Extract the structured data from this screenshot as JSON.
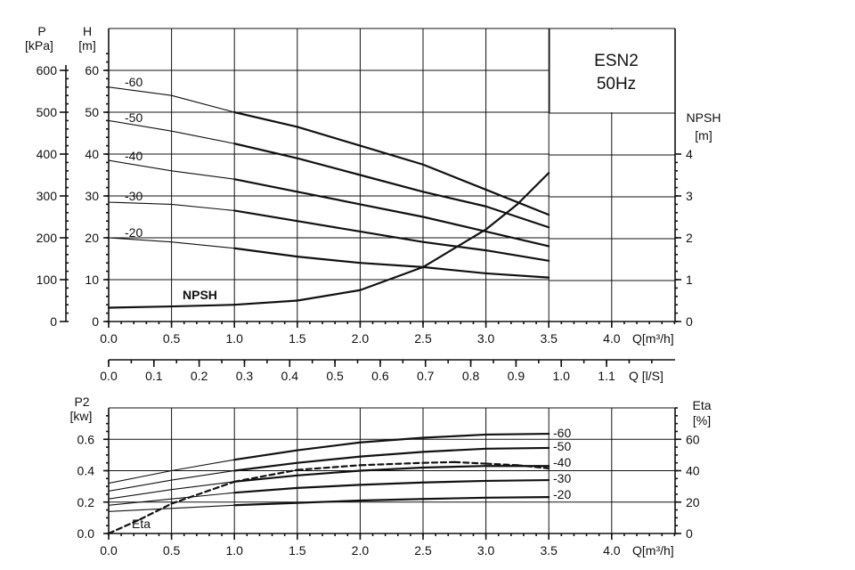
{
  "chart_data": [
    {
      "type": "line",
      "panel": "head-npsh",
      "title": "ESN2",
      "subtitle": "50Hz",
      "x_axis": {
        "label": "Q[m³/h]",
        "ticks": [
          "0.0",
          "0.5",
          "1.0",
          "1.5",
          "2.0",
          "2.5",
          "3.0",
          "3.5",
          "4.0"
        ],
        "range": [
          0,
          4.5
        ]
      },
      "y_axes": {
        "head": {
          "label_top": "H",
          "label_unit": "[m]",
          "ticks": [
            "0",
            "10",
            "20",
            "30",
            "40",
            "50",
            "60"
          ],
          "range": [
            0,
            60
          ]
        },
        "pressure": {
          "label_top": "P",
          "label_unit": "[kPa]",
          "ticks": [
            "0",
            "100",
            "200",
            "300",
            "400",
            "500",
            "600"
          ],
          "range": [
            0,
            600
          ]
        },
        "npsh": {
          "label_top": "NPSH",
          "label_unit": "[m]",
          "ticks": [
            "0",
            "1",
            "2",
            "3",
            "4"
          ],
          "range": [
            0,
            4
          ]
        }
      },
      "grid": true,
      "series": [
        {
          "name": "-60",
          "axis": "head",
          "x": [
            0,
            0.5,
            1.0,
            1.5,
            2.0,
            2.5,
            3.0,
            3.5
          ],
          "y": [
            56,
            54,
            50,
            46.5,
            42,
            37.5,
            31.5,
            25.5
          ],
          "weight": [
            1,
            1,
            2,
            2,
            2,
            2,
            2
          ]
        },
        {
          "name": "-50",
          "axis": "head",
          "x": [
            0,
            0.5,
            1.0,
            1.5,
            2.0,
            2.5,
            3.0,
            3.5
          ],
          "y": [
            48,
            45.5,
            42.5,
            39,
            35,
            31,
            27.5,
            22.5
          ],
          "weight": [
            1,
            1,
            2,
            2,
            2,
            2,
            2
          ]
        },
        {
          "name": "-40",
          "axis": "head",
          "x": [
            0,
            0.5,
            1.0,
            1.5,
            2.0,
            2.5,
            3.0,
            3.5
          ],
          "y": [
            38.5,
            36,
            34,
            31,
            28,
            25,
            21.5,
            18
          ],
          "weight": [
            1,
            1,
            2,
            2,
            2,
            2,
            2
          ]
        },
        {
          "name": "-30",
          "axis": "head",
          "x": [
            0,
            0.5,
            1.0,
            1.5,
            2.0,
            2.5,
            3.0,
            3.5
          ],
          "y": [
            28.5,
            28,
            26.5,
            24,
            21.5,
            19,
            17,
            14.5
          ],
          "weight": [
            1,
            1,
            2,
            2,
            2,
            2,
            2
          ]
        },
        {
          "name": "-20",
          "axis": "head",
          "x": [
            0,
            0.5,
            1.0,
            1.5,
            2.0,
            2.5,
            3.0,
            3.5
          ],
          "y": [
            20,
            19,
            17.5,
            15.5,
            14,
            13,
            11.5,
            10.5
          ],
          "weight": [
            1,
            1,
            2,
            2,
            2,
            2,
            2
          ]
        },
        {
          "name": "NPSH",
          "axis": "npsh",
          "x": [
            0,
            0.5,
            1.0,
            1.5,
            2.0,
            2.5,
            3.0,
            3.25,
            3.5
          ],
          "y": [
            0.33,
            0.36,
            0.4,
            0.5,
            0.75,
            1.3,
            2.2,
            2.8,
            3.55
          ],
          "weight": [
            2,
            2,
            2,
            2,
            2,
            2,
            2,
            2
          ]
        }
      ]
    },
    {
      "type": "axis",
      "panel": "flow-conversion",
      "x_axis": {
        "label": "Q [l/S]",
        "ticks": [
          "0.0",
          "0.1",
          "0.2",
          "0.3",
          "0.4",
          "0.5",
          "0.6",
          "0.7",
          "0.8",
          "0.9",
          "1.0",
          "1.1"
        ],
        "range": [
          0,
          1.25
        ]
      }
    },
    {
      "type": "line",
      "panel": "power-efficiency",
      "x_axis": {
        "label": "Q[m³/h]",
        "ticks": [
          "0.0",
          "0.5",
          "1.0",
          "1.5",
          "2.0",
          "2.5",
          "3.0",
          "3.5",
          "4.0"
        ],
        "range": [
          0,
          4.5
        ]
      },
      "y_axes": {
        "power": {
          "label_top": "P2",
          "label_unit": "[kw]",
          "ticks": [
            "0.0",
            "0.2",
            "0.4",
            "0.6"
          ],
          "range": [
            0,
            0.8
          ]
        },
        "eta": {
          "label_top": "Eta",
          "label_unit": "[%]",
          "ticks": [
            "0",
            "20",
            "40",
            "60"
          ],
          "range": [
            0,
            80
          ]
        }
      },
      "grid": true,
      "series": [
        {
          "name": "-60",
          "axis": "power",
          "x": [
            0,
            0.5,
            1.0,
            1.5,
            2.0,
            2.5,
            3.0,
            3.5
          ],
          "y": [
            0.32,
            0.4,
            0.47,
            0.53,
            0.58,
            0.61,
            0.63,
            0.635
          ],
          "weight": [
            1,
            1,
            2,
            2,
            2,
            2,
            2
          ]
        },
        {
          "name": "-50",
          "axis": "power",
          "x": [
            0,
            0.5,
            1.0,
            1.5,
            2.0,
            2.5,
            3.0,
            3.5
          ],
          "y": [
            0.27,
            0.34,
            0.4,
            0.45,
            0.49,
            0.52,
            0.54,
            0.545
          ],
          "weight": [
            1,
            1,
            2,
            2,
            2,
            2,
            2
          ]
        },
        {
          "name": "-40",
          "axis": "power",
          "x": [
            0,
            0.5,
            1.0,
            1.5,
            2.0,
            2.5,
            3.0,
            3.5
          ],
          "y": [
            0.22,
            0.28,
            0.33,
            0.37,
            0.4,
            0.42,
            0.43,
            0.43
          ],
          "weight": [
            1,
            1,
            2,
            2,
            2,
            2,
            2
          ]
        },
        {
          "name": "-30",
          "axis": "power",
          "x": [
            0,
            0.5,
            1.0,
            1.5,
            2.0,
            2.5,
            3.0,
            3.5
          ],
          "y": [
            0.18,
            0.22,
            0.26,
            0.29,
            0.31,
            0.325,
            0.335,
            0.34
          ],
          "weight": [
            1,
            1,
            2,
            2,
            2,
            2,
            2
          ]
        },
        {
          "name": "-20",
          "axis": "power",
          "x": [
            0,
            0.5,
            1.0,
            1.5,
            2.0,
            2.5,
            3.0,
            3.5
          ],
          "y": [
            0.14,
            0.16,
            0.18,
            0.195,
            0.21,
            0.22,
            0.228,
            0.232
          ],
          "weight": [
            1,
            1,
            2,
            2,
            2,
            2,
            2
          ]
        },
        {
          "name": "Eta",
          "axis": "eta",
          "dashed": true,
          "x": [
            0,
            0.25,
            0.5,
            1.0,
            1.5,
            2.0,
            2.5,
            2.75,
            3.0,
            3.25,
            3.5
          ],
          "y": [
            0,
            9,
            19,
            33,
            40.5,
            43.5,
            45,
            45.5,
            44.5,
            43.5,
            41.5
          ],
          "weight": [
            2,
            2,
            2,
            2,
            2,
            2,
            2,
            2,
            2,
            2
          ]
        }
      ]
    }
  ]
}
